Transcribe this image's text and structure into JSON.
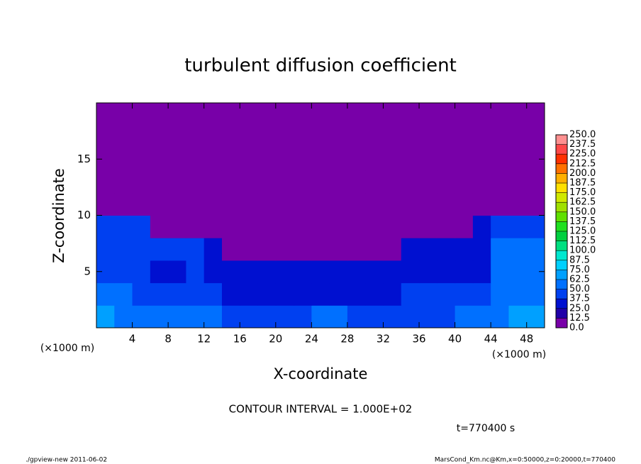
{
  "chart_data": {
    "type": "heatmap",
    "title": "turbulent diffusion coefficient",
    "xlabel": "X-coordinate",
    "ylabel": "Z-coordinate",
    "axis_unit": "(×1000 m)",
    "xlim": [
      0,
      50
    ],
    "ylim": [
      0,
      20
    ],
    "xticks": [
      4,
      8,
      12,
      16,
      20,
      24,
      28,
      32,
      36,
      40,
      44,
      48
    ],
    "yticks": [
      5,
      10,
      15
    ],
    "xbins": [
      0,
      2,
      4,
      6,
      8,
      10,
      12,
      14,
      16,
      18,
      20,
      22,
      24,
      26,
      28,
      30,
      32,
      34,
      36,
      38,
      40,
      42,
      44,
      46,
      48,
      50
    ],
    "ybins": [
      0,
      2,
      4,
      6,
      8,
      10,
      12,
      14,
      16,
      18,
      20
    ],
    "values": [
      [
        65,
        60,
        55,
        50,
        50,
        55,
        50,
        45,
        45,
        45,
        40,
        45,
        50,
        55,
        45,
        45,
        40,
        40,
        45,
        45,
        50,
        55,
        60,
        65,
        65
      ],
      [
        55,
        50,
        45,
        40,
        40,
        45,
        40,
        30,
        30,
        30,
        30,
        30,
        30,
        30,
        30,
        30,
        30,
        40,
        40,
        40,
        40,
        40,
        60,
        60,
        60
      ],
      [
        45,
        45,
        40,
        35,
        35,
        40,
        35,
        25,
        25,
        25,
        25,
        25,
        25,
        25,
        25,
        25,
        25,
        25,
        35,
        35,
        35,
        35,
        55,
        55,
        55
      ],
      [
        40,
        40,
        40,
        40,
        40,
        40,
        30,
        0,
        0,
        0,
        0,
        0,
        0,
        0,
        0,
        0,
        0,
        25,
        35,
        35,
        35,
        35,
        50,
        50,
        50
      ],
      [
        40,
        40,
        40,
        0,
        0,
        0,
        0,
        0,
        0,
        0,
        0,
        0,
        0,
        0,
        0,
        0,
        0,
        0,
        0,
        0,
        0,
        30,
        45,
        45,
        45
      ],
      [
        0,
        0,
        0,
        0,
        0,
        0,
        0,
        0,
        0,
        0,
        0,
        0,
        0,
        0,
        0,
        0,
        0,
        0,
        0,
        0,
        0,
        0,
        0,
        0,
        0
      ],
      [
        0,
        0,
        0,
        0,
        0,
        0,
        0,
        0,
        0,
        0,
        0,
        0,
        0,
        0,
        0,
        0,
        0,
        0,
        0,
        0,
        0,
        0,
        0,
        0,
        0
      ],
      [
        0,
        0,
        0,
        0,
        0,
        0,
        0,
        0,
        0,
        0,
        0,
        0,
        0,
        0,
        0,
        0,
        0,
        0,
        0,
        0,
        0,
        0,
        0,
        0,
        0
      ],
      [
        0,
        0,
        0,
        0,
        0,
        0,
        0,
        0,
        0,
        0,
        0,
        0,
        0,
        0,
        0,
        0,
        0,
        0,
        0,
        0,
        0,
        0,
        0,
        0,
        0
      ],
      [
        0,
        0,
        0,
        0,
        0,
        0,
        0,
        0,
        0,
        0,
        0,
        0,
        0,
        0,
        0,
        0,
        0,
        0,
        0,
        0,
        0,
        0,
        0,
        0,
        0
      ]
    ],
    "colorbar": {
      "ticks": [
        {
          "value": 0,
          "label": "0.0"
        },
        12.5,
        {
          "value": 25,
          "label": "25.0"
        },
        37.5,
        {
          "value": 50,
          "label": "50.0"
        },
        62.5,
        {
          "value": 75,
          "label": "75.0"
        },
        87.5,
        {
          "value": 100,
          "label": "100.0"
        },
        112.5,
        {
          "value": 125,
          "label": "125.0"
        },
        137.5,
        {
          "value": 150,
          "label": "150.0"
        },
        162.5,
        {
          "value": 175,
          "label": "175.0"
        },
        187.5,
        {
          "value": 200,
          "label": "200.0"
        },
        212.5,
        {
          "value": 225,
          "label": "225.0"
        },
        237.5,
        {
          "value": 250,
          "label": "250.0"
        }
      ],
      "colors": [
        "#7800a8",
        "#2000a8",
        "#0010d0",
        "#0040f0",
        "#0070ff",
        "#00a0ff",
        "#00d0ff",
        "#00e8d0",
        "#00e080",
        "#00d040",
        "#20e020",
        "#60e000",
        "#a0e000",
        "#d0e800",
        "#ffe000",
        "#ffb000",
        "#ff7000",
        "#ff3000",
        "#ff4848",
        "#ff9090"
      ]
    },
    "contour_interval": "CONTOUR INTERVAL = 1.000E+02",
    "time_label": "t=770400 s",
    "footer_left": "./gpview-new   2011-06-02",
    "footer_right": "MarsCond_Km.nc@Km,x=0:50000,z=0:20000,t=770400"
  }
}
